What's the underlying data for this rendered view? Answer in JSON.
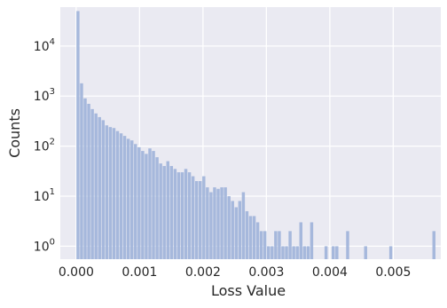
{
  "chart_data": {
    "type": "bar",
    "title": "",
    "xlabel": "Loss Value",
    "ylabel": "Counts",
    "yscale": "log",
    "grid": true,
    "legend": "none",
    "bar_color": "#9fb3d9",
    "background_color": "#eaeaf2",
    "grid_color": "#ffffff",
    "xlim": [
      -0.00025,
      0.00575
    ],
    "ylim": [
      0.55,
      60000
    ],
    "x_ticks": [
      0.0,
      0.001,
      0.002,
      0.003,
      0.004,
      0.005
    ],
    "x_tick_labels": [
      "0.000",
      "0.001",
      "0.002",
      "0.003",
      "0.004",
      "0.005"
    ],
    "y_ticks": [
      1,
      10,
      100,
      1000,
      10000
    ],
    "y_tick_labels": [
      {
        "base": "10",
        "exp": "0"
      },
      {
        "base": "10",
        "exp": "1"
      },
      {
        "base": "10",
        "exp": "2"
      },
      {
        "base": "10",
        "exp": "3"
      },
      {
        "base": "10",
        "exp": "4"
      }
    ],
    "bin_width": 5.67e-05,
    "bins_start": [
      0.0,
      5.67e-05,
      0.0001134,
      0.0001701,
      0.0002268,
      0.0002835,
      0.0003402,
      0.0003969,
      0.0004536,
      0.0005103,
      0.000567,
      0.0006237,
      0.0006804,
      0.0007371,
      0.0007938,
      0.0008505,
      0.0009072,
      0.0009639,
      0.0010206,
      0.0010773,
      0.001134,
      0.0011907,
      0.0012474,
      0.0013041,
      0.0013608,
      0.0014175,
      0.0014742,
      0.0015309,
      0.0015876,
      0.0016443,
      0.001701,
      0.0017577,
      0.0018144,
      0.0018711,
      0.0019278,
      0.0019845,
      0.0020412,
      0.0020979,
      0.0021546,
      0.0022113,
      0.002268,
      0.0023247,
      0.0023814,
      0.0024381,
      0.0024948,
      0.0025515,
      0.0026082,
      0.0026649,
      0.0027216,
      0.0027783,
      0.002835,
      0.0028917,
      0.0029484,
      0.0030051,
      0.0030618,
      0.0031185,
      0.0031752,
      0.0032319,
      0.0032886,
      0.0033453,
      0.003402,
      0.0034587,
      0.0035154,
      0.0035721,
      0.0036288,
      0.0036855,
      0.0039123,
      0.004026,
      0.0040827,
      0.0042528,
      0.0045363,
      0.0049332,
      0.0056136
    ],
    "counts": [
      50000,
      1800,
      900,
      700,
      550,
      450,
      380,
      330,
      260,
      240,
      230,
      200,
      180,
      160,
      140,
      130,
      110,
      95,
      80,
      70,
      90,
      80,
      60,
      45,
      40,
      50,
      40,
      35,
      30,
      30,
      35,
      30,
      25,
      20,
      20,
      25,
      15,
      12,
      15,
      14,
      15,
      15,
      10,
      8,
      6,
      8,
      12,
      5,
      4,
      4,
      3,
      2,
      2,
      1,
      1,
      2,
      2,
      1,
      1,
      2,
      1,
      1,
      3,
      1,
      1,
      3,
      1,
      1,
      1,
      2,
      1,
      1,
      2
    ]
  }
}
